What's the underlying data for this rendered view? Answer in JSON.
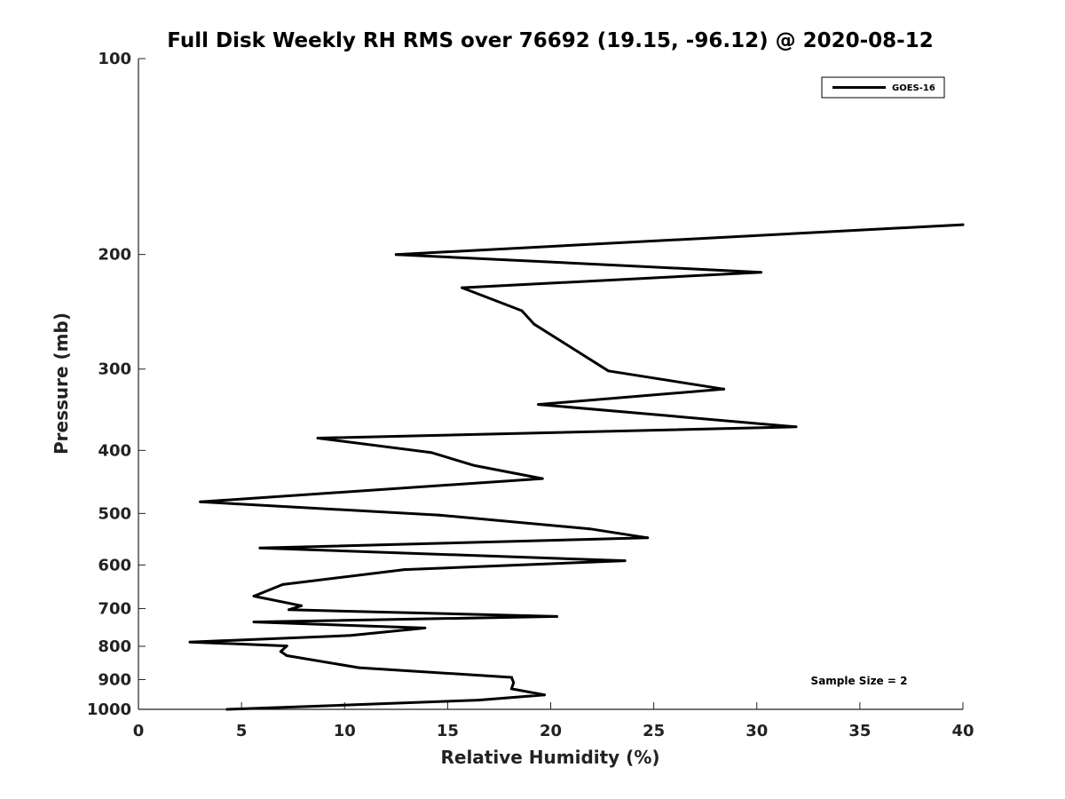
{
  "chart_data": {
    "type": "line",
    "title": "Full Disk Weekly RH RMS over 76692 (19.15, -96.12) @ 2020-08-12",
    "xlabel": "Relative Humidity (%)",
    "ylabel": "Pressure (mb)",
    "xlim": [
      0,
      40
    ],
    "ylim": [
      1000,
      100
    ],
    "yscale": "log",
    "grid": false,
    "legend_position": "top-right",
    "xticks": [
      0,
      5,
      10,
      15,
      20,
      25,
      30,
      35,
      40
    ],
    "xtick_labels": [
      "0",
      "5",
      "10",
      "15",
      "20",
      "25",
      "30",
      "35",
      "40"
    ],
    "yticks": [
      100,
      200,
      300,
      400,
      500,
      600,
      700,
      800,
      900,
      1000
    ],
    "ytick_labels": [
      "100",
      "200",
      "300",
      "400",
      "500",
      "600",
      "700",
      "800",
      "900",
      "1000"
    ],
    "series": [
      {
        "name": "GOES-16",
        "color": "#000000",
        "x": [
          40.0,
          12.5,
          30.2,
          15.7,
          18.6,
          19.2,
          22.8,
          28.4,
          19.4,
          31.9,
          8.7,
          14.2,
          16.3,
          19.6,
          3.0,
          14.6,
          21.9,
          24.7,
          5.9,
          23.6,
          12.9,
          7.0,
          5.6,
          7.9,
          7.3,
          20.3,
          5.6,
          13.9,
          10.3,
          2.5,
          7.2,
          6.9,
          7.2,
          10.7,
          18.1,
          18.2,
          18.1,
          19.7,
          16.5,
          10.4,
          4.3
        ],
        "y": [
          180,
          200,
          213,
          225,
          244,
          256,
          302,
          322,
          340,
          368,
          383,
          403,
          422,
          442,
          480,
          503,
          528,
          545,
          565,
          591,
          610,
          643,
          670,
          693,
          703,
          720,
          734,
          750,
          770,
          788,
          799,
          815,
          827,
          863,
          893,
          910,
          930,
          950,
          968,
          984,
          1000
        ]
      }
    ],
    "annotations": [
      {
        "text": "Sample Size = 2",
        "x": 35,
        "y": 900
      }
    ]
  }
}
